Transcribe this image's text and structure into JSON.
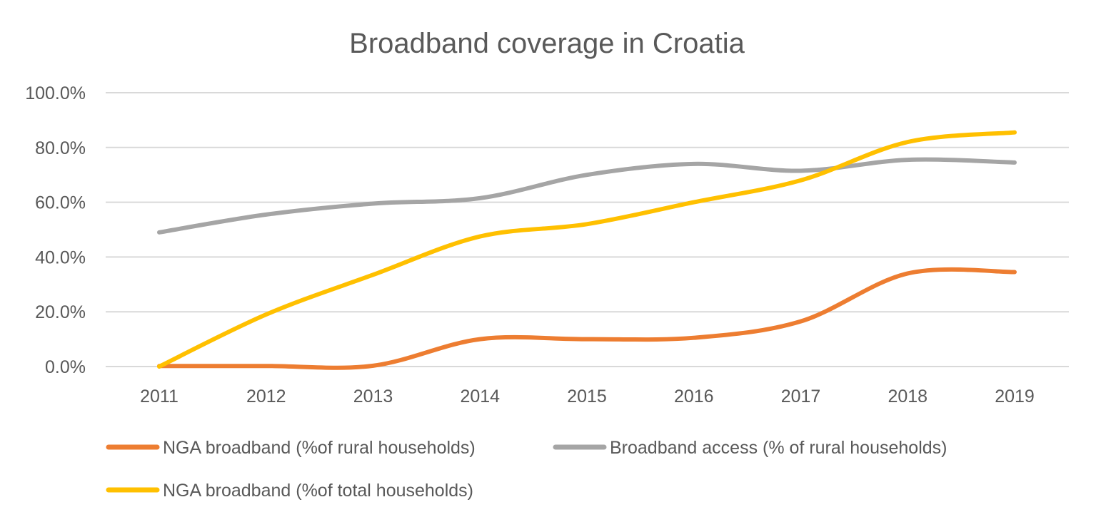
{
  "chart_data": {
    "type": "line",
    "title": "Broadband coverage in Croatia",
    "xlabel": "",
    "ylabel": "",
    "categories": [
      "2011",
      "2012",
      "2013",
      "2014",
      "2015",
      "2016",
      "2017",
      "2018",
      "2019"
    ],
    "y_ticks": [
      "0.0%",
      "20.0%",
      "40.0%",
      "60.0%",
      "80.0%",
      "100.0%"
    ],
    "ylim": [
      0,
      100
    ],
    "grid": true,
    "smooth": true,
    "legend_position": "bottom",
    "series": [
      {
        "name": "NGA broadband (%of rural households)",
        "color": "#ED7D31",
        "values": [
          0.2,
          0.2,
          0.3,
          10,
          10,
          10.5,
          16.5,
          34,
          34.5
        ]
      },
      {
        "name": "Broadband access (% of rural households)",
        "color": "#A5A5A5",
        "values": [
          49,
          55.5,
          59.5,
          61.5,
          70,
          74,
          71.5,
          75.5,
          74.5
        ]
      },
      {
        "name": "NGA broadband (%of total households)",
        "color": "#FFC000",
        "values": [
          0,
          19,
          33.5,
          47.5,
          52,
          60,
          68,
          82,
          85.5
        ]
      }
    ]
  }
}
